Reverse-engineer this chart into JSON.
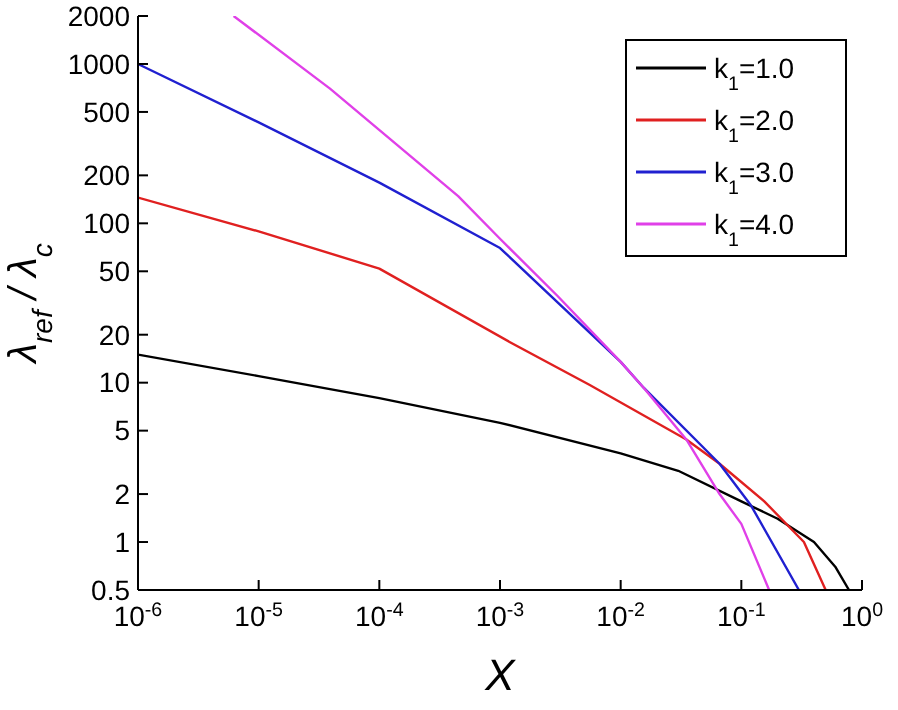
{
  "chart_data": {
    "type": "line",
    "xlabel": "X",
    "ylabel": "λ$_{ref}$ / λ$_{c}$",
    "log": "xy",
    "grid": false,
    "legend": "top right",
    "line_style": "solid",
    "marker": "none",
    "xlim": [
      1e-06,
      1
    ],
    "ylim": [
      0.5,
      2000
    ],
    "xticks": [
      {
        "value": 1e-06,
        "label": "10$^{-6}$"
      },
      {
        "value": 1e-05,
        "label": "10$^{-5}$"
      },
      {
        "value": 0.0001,
        "label": "10$^{-4}$"
      },
      {
        "value": 0.001,
        "label": "10$^{-3}$"
      },
      {
        "value": 0.01,
        "label": "10$^{-2}$"
      },
      {
        "value": 0.1,
        "label": "10$^{-1}$"
      },
      {
        "value": 1,
        "label": "10$^{0}$"
      }
    ],
    "yticks": [
      0.5,
      1,
      2,
      5,
      10,
      20,
      50,
      100,
      200,
      500,
      1000,
      2000
    ],
    "series": [
      {
        "name": "k$_{1}$=1.0",
        "color": "#000000",
        "x": [
          1e-06,
          1e-05,
          0.0001,
          0.001,
          0.01,
          0.03,
          0.1,
          0.2,
          0.4,
          0.6,
          0.78
        ],
        "values": [
          15,
          11,
          8,
          5.6,
          3.6,
          2.8,
          1.8,
          1.4,
          1.0,
          0.7,
          0.5
        ]
      },
      {
        "name": "k$_{1}$=2.0",
        "color": "#e02020",
        "x": [
          1e-06,
          1e-05,
          0.0001,
          0.0012,
          0.0055,
          0.035,
          0.066,
          0.155,
          0.33,
          0.5
        ],
        "values": [
          145,
          89,
          52,
          18,
          9.7,
          4.4,
          3.1,
          1.8,
          1.0,
          0.5
        ]
      },
      {
        "name": "k$_{1}$=3.0",
        "color": "#2020d0",
        "x": [
          1e-06,
          1e-05,
          0.0001,
          0.001,
          0.01,
          0.0155,
          0.066,
          0.12,
          0.3
        ],
        "values": [
          1000,
          430,
          180,
          70,
          13.5,
          9.3,
          3.1,
          1.7,
          0.5
        ]
      },
      {
        "name": "k$_{1}$=4.0",
        "color": "#e040e8",
        "x": [
          6.2e-06,
          3.9e-05,
          0.00045,
          0.001,
          0.003,
          0.01,
          0.0155,
          0.035,
          0.066,
          0.1,
          0.17
        ],
        "values": [
          2000,
          700,
          148,
          80,
          35,
          13.5,
          9.3,
          4.4,
          2.0,
          1.3,
          0.5
        ]
      }
    ]
  }
}
